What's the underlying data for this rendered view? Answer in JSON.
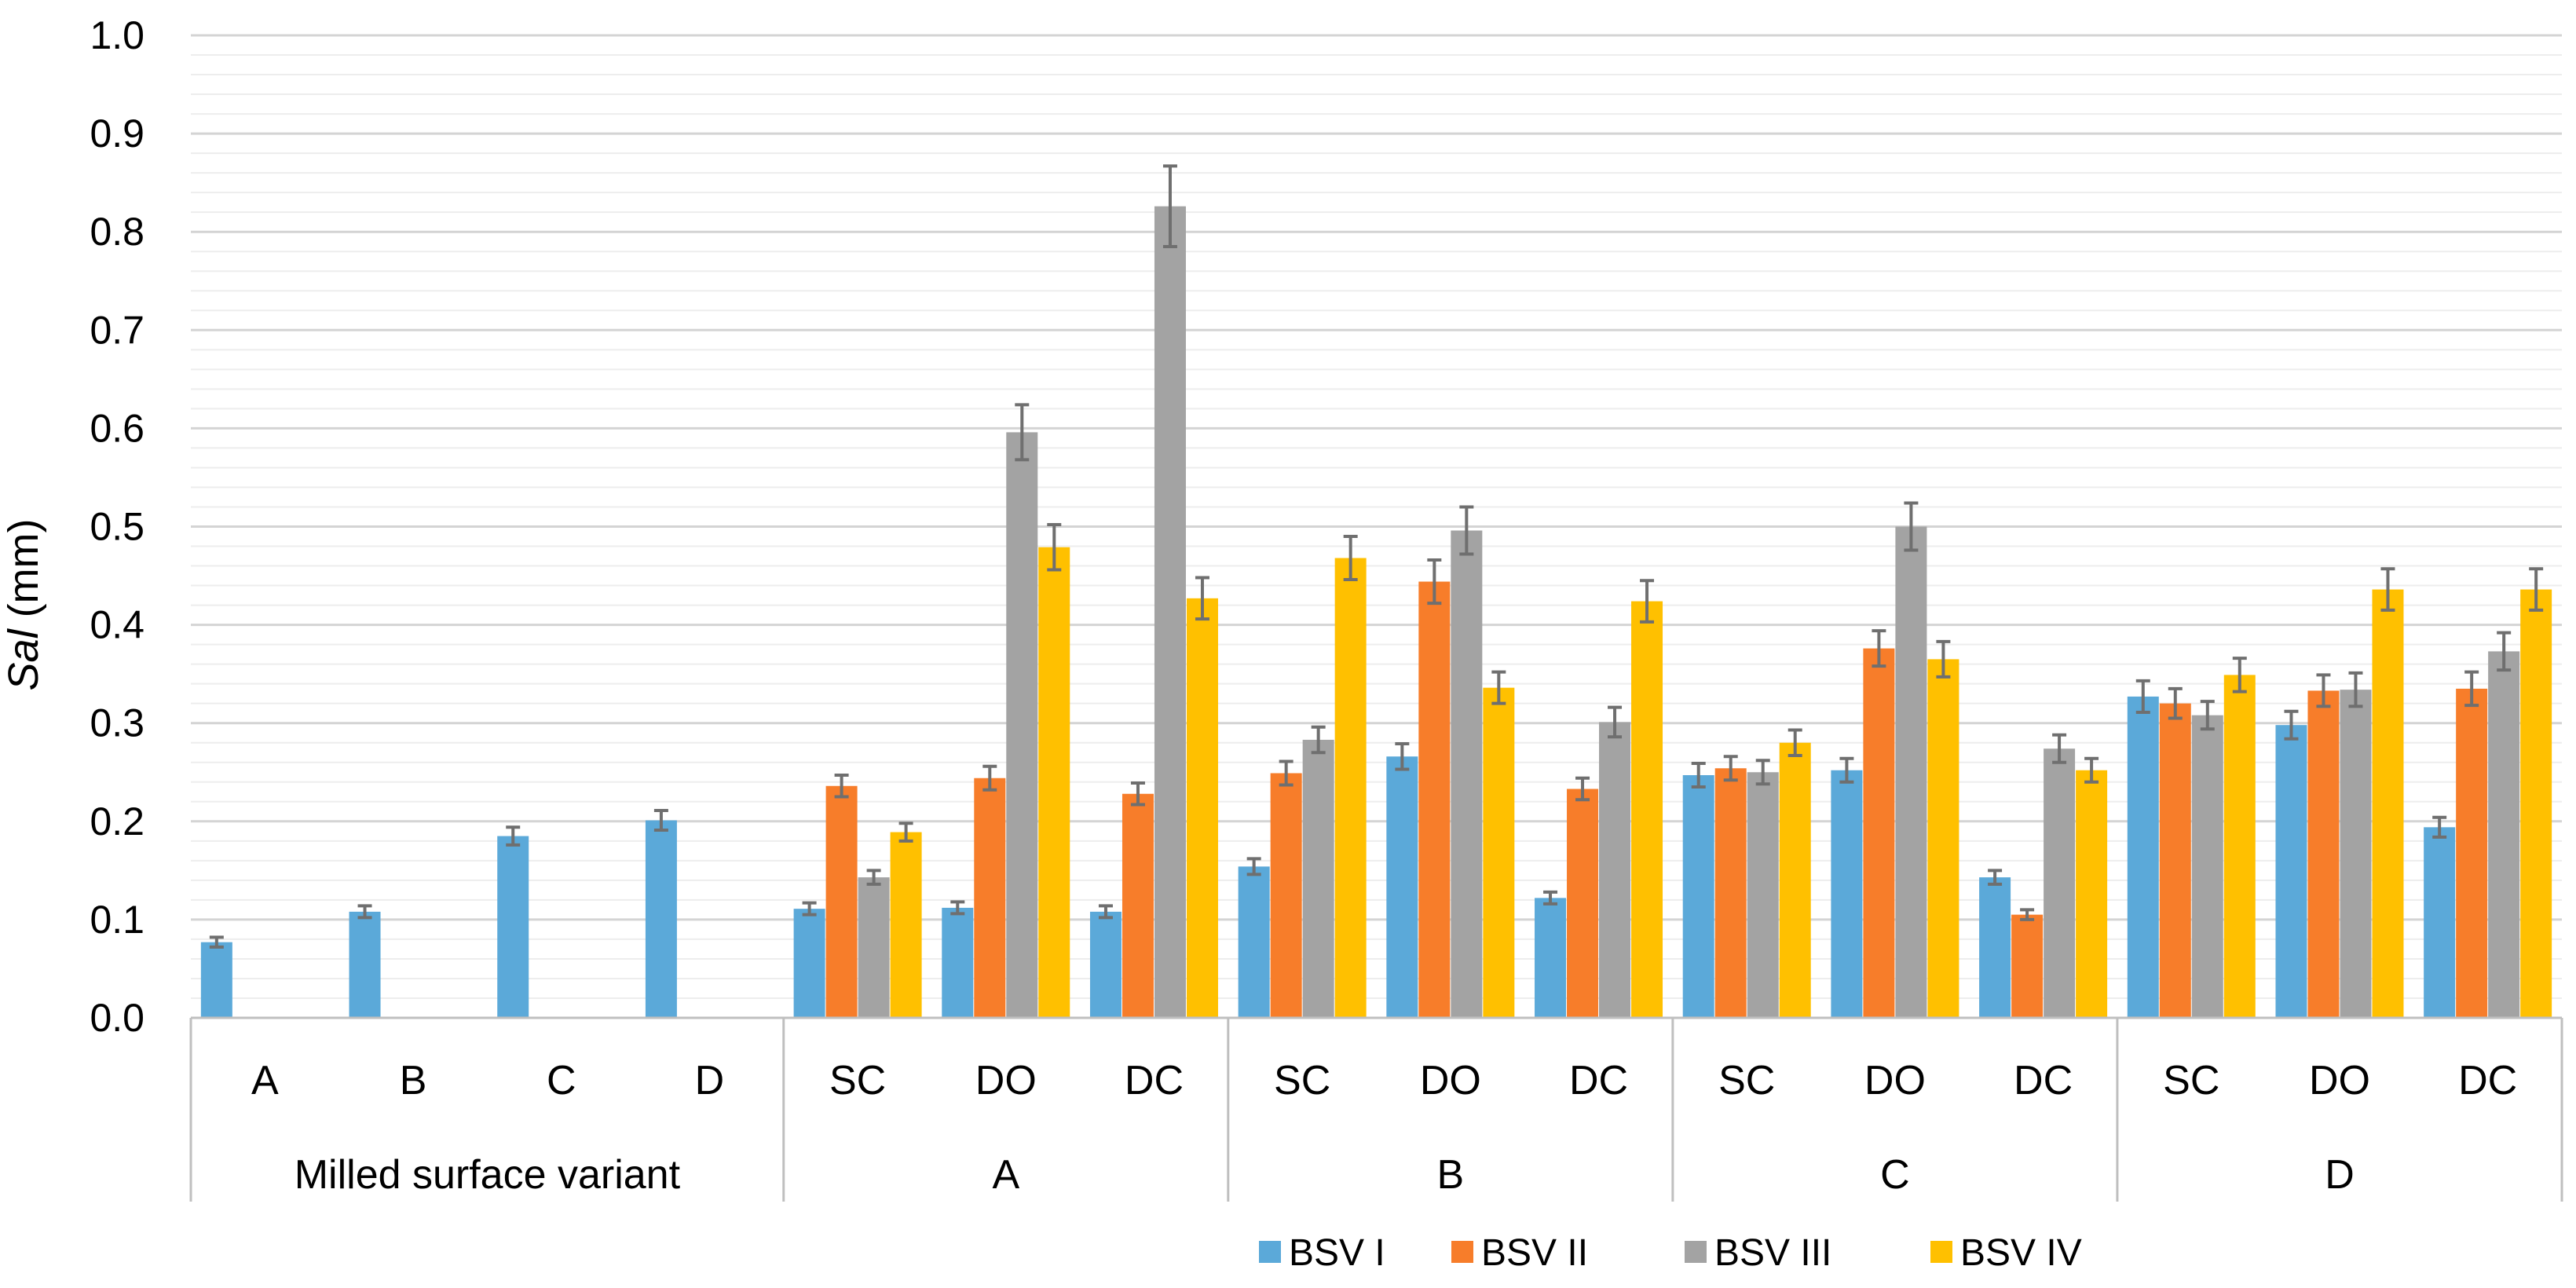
{
  "chart_data": {
    "type": "bar",
    "ylabel_italic": "Sal",
    "ylabel_unit": " (mm)",
    "ylim": [
      0,
      1.0
    ],
    "yticks": [
      0.0,
      0.1,
      0.2,
      0.3,
      0.4,
      0.5,
      0.6,
      0.7,
      0.8,
      0.9,
      1.0
    ],
    "ytick_labels": [
      "0.0",
      "0.1",
      "0.2",
      "0.3",
      "0.4",
      "0.5",
      "0.6",
      "0.7",
      "0.8",
      "0.9",
      "1.0"
    ],
    "minor_grid_step": 0.02,
    "grid": true,
    "legend_position": "bottom",
    "colors": [
      "#5BA9D9",
      "#F77D2A",
      "#A3A3A3",
      "#FFC000"
    ],
    "errorbar_color": "#6F6F6F",
    "series": [
      {
        "name": "BSV I",
        "values": [
          0.077,
          0.108,
          0.185,
          0.201,
          0.111,
          0.112,
          0.108,
          0.154,
          0.266,
          0.122,
          0.247,
          0.252,
          0.143,
          0.327,
          0.298,
          0.194
        ],
        "errors": [
          0.005,
          0.006,
          0.009,
          0.01,
          0.006,
          0.006,
          0.006,
          0.008,
          0.013,
          0.006,
          0.012,
          0.012,
          0.007,
          0.016,
          0.014,
          0.01
        ]
      },
      {
        "name": "BSV II",
        "values": [
          null,
          null,
          null,
          null,
          0.236,
          0.244,
          0.228,
          0.249,
          0.444,
          0.233,
          0.254,
          0.376,
          0.105,
          0.32,
          0.333,
          0.335
        ],
        "errors": [
          null,
          null,
          null,
          null,
          0.011,
          0.012,
          0.011,
          0.012,
          0.022,
          0.011,
          0.012,
          0.018,
          0.005,
          0.015,
          0.016,
          0.017
        ]
      },
      {
        "name": "BSV III",
        "values": [
          null,
          null,
          null,
          null,
          0.143,
          0.596,
          0.826,
          0.283,
          0.496,
          0.301,
          0.25,
          0.5,
          0.274,
          0.308,
          0.334,
          0.373
        ],
        "errors": [
          null,
          null,
          null,
          null,
          0.007,
          0.028,
          0.041,
          0.013,
          0.024,
          0.015,
          0.012,
          0.024,
          0.014,
          0.014,
          0.017,
          0.019
        ]
      },
      {
        "name": "BSV IV",
        "values": [
          null,
          null,
          null,
          null,
          0.189,
          0.479,
          0.427,
          0.468,
          0.336,
          0.424,
          0.28,
          0.365,
          0.252,
          0.349,
          0.436,
          0.436
        ],
        "errors": [
          null,
          null,
          null,
          null,
          0.009,
          0.023,
          0.021,
          0.022,
          0.016,
          0.021,
          0.013,
          0.018,
          0.012,
          0.017,
          0.021,
          0.021
        ]
      }
    ],
    "categories": [
      "A",
      "B",
      "C",
      "D",
      "SC",
      "DO",
      "DC",
      "SC",
      "DO",
      "DC",
      "SC",
      "DO",
      "DC",
      "SC",
      "DO",
      "DC"
    ],
    "groups": [
      {
        "label": "Milled surface variant",
        "count": 4
      },
      {
        "label": "A",
        "count": 3
      },
      {
        "label": "B",
        "count": 3
      },
      {
        "label": "C",
        "count": 3
      },
      {
        "label": "D",
        "count": 3
      }
    ]
  }
}
